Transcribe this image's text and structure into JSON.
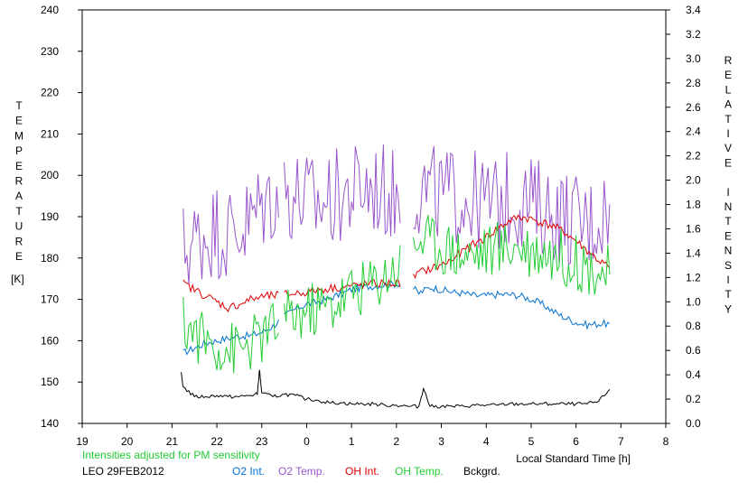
{
  "chart_data": {
    "type": "line",
    "left_axis": {
      "label_letters": [
        "T",
        "E",
        "M",
        "P",
        "E",
        "R",
        "A",
        "T",
        "U",
        "R",
        "E"
      ],
      "unit": "[K]",
      "ylim": [
        140,
        240
      ],
      "ticks": [
        "140",
        "150",
        "160",
        "170",
        "180",
        "190",
        "200",
        "210",
        "220",
        "230",
        "240"
      ]
    },
    "right_axis": {
      "label_letters": [
        "R",
        "E",
        "L",
        "A",
        "T",
        "I",
        "V",
        "E",
        "",
        "I",
        "N",
        "T",
        "E",
        "N",
        "S",
        "I",
        "T",
        "Y"
      ],
      "ylim": [
        0.0,
        3.4
      ],
      "ticks": [
        "0.0",
        "0.2",
        "0.4",
        "0.6",
        "0.8",
        "1.0",
        "1.2",
        "1.4",
        "1.6",
        "1.8",
        "2.0",
        "2.2",
        "2.4",
        "2.6",
        "2.8",
        "3.0",
        "3.2",
        "3.4"
      ]
    },
    "x_axis": {
      "label": "Local Standard Time [h]",
      "xlim": [
        19,
        32
      ],
      "ticks": [
        "19",
        "20",
        "21",
        "22",
        "23",
        "0",
        "1",
        "2",
        "3",
        "4",
        "5",
        "6",
        "7",
        "8"
      ]
    },
    "note": "Intensities adjusted for PM sensitivity",
    "site_date": "LEO 29FEB2012",
    "grid": false,
    "series": [
      {
        "name": "O2 Int.",
        "color": "#0070d0",
        "axis": "right",
        "points": [
          [
            21.25,
            0.58
          ],
          [
            21.5,
            0.62
          ],
          [
            21.75,
            0.66
          ],
          [
            22.0,
            0.68
          ],
          [
            22.25,
            0.7
          ],
          [
            22.5,
            0.72
          ],
          [
            22.75,
            0.72
          ],
          [
            23.0,
            0.75
          ],
          [
            23.25,
            0.8
          ],
          [
            23.5,
            0.88
          ],
          [
            23.75,
            0.94
          ],
          [
            24.0,
            0.98
          ],
          [
            24.25,
            1.0
          ],
          [
            24.5,
            1.03
          ],
          [
            24.75,
            1.06
          ],
          [
            25.0,
            1.1
          ],
          [
            25.25,
            1.12
          ],
          [
            25.5,
            1.13
          ],
          [
            25.75,
            1.14
          ],
          [
            26.0,
            1.15
          ],
          [
            26.25,
            1.15
          ],
          [
            26.5,
            1.07
          ],
          [
            26.75,
            1.12
          ],
          [
            27.0,
            1.1
          ],
          [
            27.25,
            1.08
          ],
          [
            27.5,
            1.07
          ],
          [
            27.75,
            1.05
          ],
          [
            28.0,
            1.05
          ],
          [
            28.25,
            1.06
          ],
          [
            28.5,
            1.06
          ],
          [
            28.75,
            1.05
          ],
          [
            29.0,
            1.02
          ],
          [
            29.25,
            0.98
          ],
          [
            29.5,
            0.92
          ],
          [
            29.75,
            0.87
          ],
          [
            30.0,
            0.83
          ],
          [
            30.25,
            0.81
          ],
          [
            30.5,
            0.82
          ],
          [
            30.75,
            0.82
          ]
        ]
      },
      {
        "name": "O2 Temp.",
        "color": "#9955cc",
        "axis": "left",
        "points": [
          [
            21.25,
            182
          ],
          [
            21.5,
            184
          ],
          [
            21.75,
            186
          ],
          [
            22.0,
            187
          ],
          [
            22.25,
            186
          ],
          [
            22.5,
            187
          ],
          [
            22.75,
            189
          ],
          [
            23.0,
            193
          ],
          [
            23.25,
            195
          ],
          [
            23.5,
            196
          ],
          [
            23.75,
            195
          ],
          [
            24.0,
            194
          ],
          [
            24.25,
            193
          ],
          [
            24.5,
            194
          ],
          [
            24.75,
            195
          ],
          [
            25.0,
            196
          ],
          [
            25.25,
            197
          ],
          [
            25.5,
            197
          ],
          [
            25.75,
            196
          ],
          [
            26.0,
            195
          ],
          [
            26.25,
            195
          ],
          [
            26.5,
            197
          ],
          [
            26.75,
            196
          ],
          [
            27.0,
            195
          ],
          [
            27.25,
            195
          ],
          [
            27.5,
            195
          ],
          [
            27.75,
            194
          ],
          [
            28.0,
            193
          ],
          [
            28.25,
            193
          ],
          [
            28.5,
            194
          ],
          [
            28.75,
            194
          ],
          [
            29.0,
            193
          ],
          [
            29.25,
            192
          ],
          [
            29.5,
            191
          ],
          [
            29.75,
            190
          ],
          [
            30.0,
            189
          ],
          [
            30.25,
            188
          ],
          [
            30.5,
            190
          ],
          [
            30.75,
            193
          ]
        ]
      },
      {
        "name": "OH Int.",
        "color": "#dd0000",
        "axis": "right",
        "points": [
          [
            21.25,
            1.15
          ],
          [
            21.5,
            1.1
          ],
          [
            21.75,
            1.05
          ],
          [
            22.0,
            1.0
          ],
          [
            22.25,
            0.95
          ],
          [
            22.5,
            0.98
          ],
          [
            22.75,
            1.02
          ],
          [
            23.0,
            1.04
          ],
          [
            23.25,
            1.05
          ],
          [
            23.5,
            1.06
          ],
          [
            23.75,
            1.07
          ],
          [
            24.0,
            1.08
          ],
          [
            24.25,
            1.1
          ],
          [
            24.5,
            1.11
          ],
          [
            24.75,
            1.12
          ],
          [
            25.0,
            1.13
          ],
          [
            25.25,
            1.14
          ],
          [
            25.5,
            1.15
          ],
          [
            25.75,
            1.15
          ],
          [
            26.0,
            1.15
          ],
          [
            26.25,
            1.16
          ],
          [
            26.5,
            1.24
          ],
          [
            26.75,
            1.27
          ],
          [
            27.0,
            1.3
          ],
          [
            27.25,
            1.35
          ],
          [
            27.5,
            1.42
          ],
          [
            27.75,
            1.48
          ],
          [
            28.0,
            1.53
          ],
          [
            28.25,
            1.6
          ],
          [
            28.5,
            1.66
          ],
          [
            28.75,
            1.7
          ],
          [
            29.0,
            1.68
          ],
          [
            29.25,
            1.65
          ],
          [
            29.5,
            1.62
          ],
          [
            29.75,
            1.57
          ],
          [
            30.0,
            1.5
          ],
          [
            30.25,
            1.42
          ],
          [
            30.5,
            1.34
          ],
          [
            30.75,
            1.28
          ]
        ]
      },
      {
        "name": "OH Temp.",
        "color": "#22cc33",
        "axis": "left",
        "points": [
          [
            21.25,
            164
          ],
          [
            21.5,
            162
          ],
          [
            21.75,
            160
          ],
          [
            22.0,
            159
          ],
          [
            22.25,
            158
          ],
          [
            22.5,
            158
          ],
          [
            22.75,
            159
          ],
          [
            23.0,
            161
          ],
          [
            23.25,
            163
          ],
          [
            23.5,
            165
          ],
          [
            23.75,
            166
          ],
          [
            24.0,
            167
          ],
          [
            24.25,
            168
          ],
          [
            24.5,
            168
          ],
          [
            24.75,
            170
          ],
          [
            25.0,
            172
          ],
          [
            25.25,
            173
          ],
          [
            25.5,
            174
          ],
          [
            25.75,
            176
          ],
          [
            26.0,
            178
          ],
          [
            26.25,
            180
          ],
          [
            26.5,
            185
          ],
          [
            26.75,
            184
          ],
          [
            27.0,
            183
          ],
          [
            27.25,
            182
          ],
          [
            27.5,
            181
          ],
          [
            27.75,
            181
          ],
          [
            28.0,
            182
          ],
          [
            28.25,
            182
          ],
          [
            28.5,
            183
          ],
          [
            28.75,
            183
          ],
          [
            29.0,
            182
          ],
          [
            29.25,
            182
          ],
          [
            29.5,
            181
          ],
          [
            29.75,
            180
          ],
          [
            30.0,
            179
          ],
          [
            30.25,
            178
          ],
          [
            30.5,
            177
          ],
          [
            30.75,
            176
          ]
        ]
      },
      {
        "name": "Bckgrd.",
        "color": "#000000",
        "axis": "right",
        "points": [
          [
            21.2,
            0.42
          ],
          [
            21.25,
            0.3
          ],
          [
            21.5,
            0.22
          ],
          [
            21.75,
            0.22
          ],
          [
            22.0,
            0.23
          ],
          [
            22.25,
            0.22
          ],
          [
            22.5,
            0.22
          ],
          [
            22.75,
            0.23
          ],
          [
            22.9,
            0.24
          ],
          [
            22.95,
            0.44
          ],
          [
            23.0,
            0.25
          ],
          [
            23.25,
            0.22
          ],
          [
            23.5,
            0.24
          ],
          [
            23.75,
            0.23
          ],
          [
            24.0,
            0.2
          ],
          [
            24.25,
            0.19
          ],
          [
            24.5,
            0.17
          ],
          [
            24.75,
            0.17
          ],
          [
            25.0,
            0.16
          ],
          [
            25.25,
            0.16
          ],
          [
            25.5,
            0.16
          ],
          [
            25.75,
            0.15
          ],
          [
            26.0,
            0.15
          ],
          [
            26.25,
            0.14
          ],
          [
            26.5,
            0.14
          ],
          [
            26.6,
            0.29
          ],
          [
            26.75,
            0.14
          ],
          [
            27.0,
            0.14
          ],
          [
            27.25,
            0.14
          ],
          [
            27.5,
            0.14
          ],
          [
            27.75,
            0.15
          ],
          [
            28.0,
            0.15
          ],
          [
            28.25,
            0.15
          ],
          [
            28.5,
            0.16
          ],
          [
            28.75,
            0.16
          ],
          [
            29.0,
            0.16
          ],
          [
            29.25,
            0.16
          ],
          [
            29.5,
            0.16
          ],
          [
            29.75,
            0.16
          ],
          [
            30.0,
            0.16
          ],
          [
            30.25,
            0.16
          ],
          [
            30.5,
            0.18
          ],
          [
            30.75,
            0.28
          ]
        ]
      }
    ]
  }
}
